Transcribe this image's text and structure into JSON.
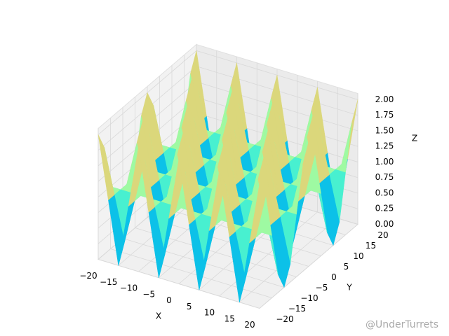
{
  "chart_data": {
    "type": "surface",
    "x": [
      -20,
      -17.5,
      -15,
      -12.5,
      -10,
      -7.5,
      -5,
      -2.5,
      0,
      2.5,
      5,
      7.5,
      10,
      12.5,
      15,
      17.5,
      20
    ],
    "y": [
      -20,
      -17.5,
      -15,
      -12.5,
      -10,
      -7.5,
      -5,
      -2.5,
      0,
      2.5,
      5,
      7.5,
      10,
      12.5,
      15,
      17.5,
      20
    ],
    "z": [
      [
        2,
        1.71,
        1,
        0.29,
        0,
        0.29,
        1,
        1.71,
        2,
        1.71,
        1,
        0.29,
        0,
        0.29,
        1,
        1.71,
        2
      ],
      [
        1,
        1,
        1,
        1,
        1,
        1,
        1,
        1,
        1,
        1,
        1,
        1,
        1,
        1,
        1,
        1,
        1
      ],
      [
        0,
        0.29,
        1,
        1.71,
        2,
        1.71,
        1,
        0.29,
        0,
        0.29,
        1,
        1.71,
        2,
        1.71,
        1,
        0.29,
        0
      ],
      [
        1,
        1,
        1,
        1,
        1,
        1,
        1,
        1,
        1,
        1,
        1,
        1,
        1,
        1,
        1,
        1,
        1
      ],
      [
        2,
        1.71,
        1,
        0.29,
        0,
        0.29,
        1,
        1.71,
        2,
        1.71,
        1,
        0.29,
        0,
        0.29,
        1,
        1.71,
        2
      ],
      [
        1,
        1,
        1,
        1,
        1,
        1,
        1,
        1,
        1,
        1,
        1,
        1,
        1,
        1,
        1,
        1,
        1
      ],
      [
        0,
        0.29,
        1,
        1.71,
        2,
        1.71,
        1,
        0.29,
        0,
        0.29,
        1,
        1.71,
        2,
        1.71,
        1,
        0.29,
        0
      ],
      [
        1,
        1,
        1,
        1,
        1,
        1,
        1,
        1,
        1,
        1,
        1,
        1,
        1,
        1,
        1,
        1,
        1
      ],
      [
        2,
        1.71,
        1,
        0.29,
        0,
        0.29,
        1,
        1.71,
        2,
        1.71,
        1,
        0.29,
        0,
        0.29,
        1,
        1.71,
        2
      ],
      [
        1,
        1,
        1,
        1,
        1,
        1,
        1,
        1,
        1,
        1,
        1,
        1,
        1,
        1,
        1,
        1,
        1
      ],
      [
        0,
        0.29,
        1,
        1.71,
        2,
        1.71,
        1,
        0.29,
        0,
        0.29,
        1,
        1.71,
        2,
        1.71,
        1,
        0.29,
        0
      ],
      [
        1,
        1,
        1,
        1,
        1,
        1,
        1,
        1,
        1,
        1,
        1,
        1,
        1,
        1,
        1,
        1,
        1
      ],
      [
        2,
        1.71,
        1,
        0.29,
        0,
        0.29,
        1,
        1.71,
        2,
        1.71,
        1,
        0.29,
        0,
        0.29,
        1,
        1.71,
        2
      ],
      [
        1,
        1,
        1,
        1,
        1,
        1,
        1,
        1,
        1,
        1,
        1,
        1,
        1,
        1,
        1,
        1,
        1
      ],
      [
        0,
        0.29,
        1,
        1.71,
        2,
        1.71,
        1,
        0.29,
        0,
        0.29,
        1,
        1.71,
        2,
        1.71,
        1,
        0.29,
        0
      ],
      [
        1,
        1,
        1,
        1,
        1,
        1,
        1,
        1,
        1,
        1,
        1,
        1,
        1,
        1,
        1,
        1,
        1
      ],
      [
        2,
        1.71,
        1,
        0.29,
        0,
        0.29,
        1,
        1.71,
        2,
        1.71,
        1,
        0.29,
        0,
        0.29,
        1,
        1.71,
        2
      ]
    ],
    "colormap": "rainbow",
    "xlabel": "X",
    "ylabel": "Y",
    "zlabel": "Z",
    "xlim": [
      -20,
      20
    ],
    "ylim": [
      -20,
      20
    ],
    "zlim": [
      0,
      2.1
    ],
    "xticks": [
      {
        "value": -20,
        "label": "−20"
      },
      {
        "value": -15,
        "label": "−15"
      },
      {
        "value": -10,
        "label": "−10"
      },
      {
        "value": -5,
        "label": "−5"
      },
      0,
      5,
      10,
      15,
      20
    ],
    "yticks": [
      {
        "value": -20,
        "label": "−20"
      },
      {
        "value": -15,
        "label": "−15"
      },
      {
        "value": -10,
        "label": "−10"
      },
      {
        "value": -5,
        "label": "−5"
      },
      0,
      5,
      10,
      15,
      20
    ],
    "zticks": [
      {
        "value": 0,
        "label": "0.00"
      },
      {
        "value": 0.25,
        "label": "0.25"
      },
      {
        "value": 0.5,
        "label": "0.50"
      },
      {
        "value": 0.75,
        "label": "0.75"
      },
      {
        "value": 1,
        "label": "1.00"
      },
      {
        "value": 1.25,
        "label": "1.25"
      },
      {
        "value": 1.5,
        "label": "1.50"
      },
      {
        "value": 1.75,
        "label": "1.75"
      },
      {
        "value": 2,
        "label": "2.00"
      }
    ],
    "grid": true,
    "watermark": "@UnderTurrets"
  }
}
